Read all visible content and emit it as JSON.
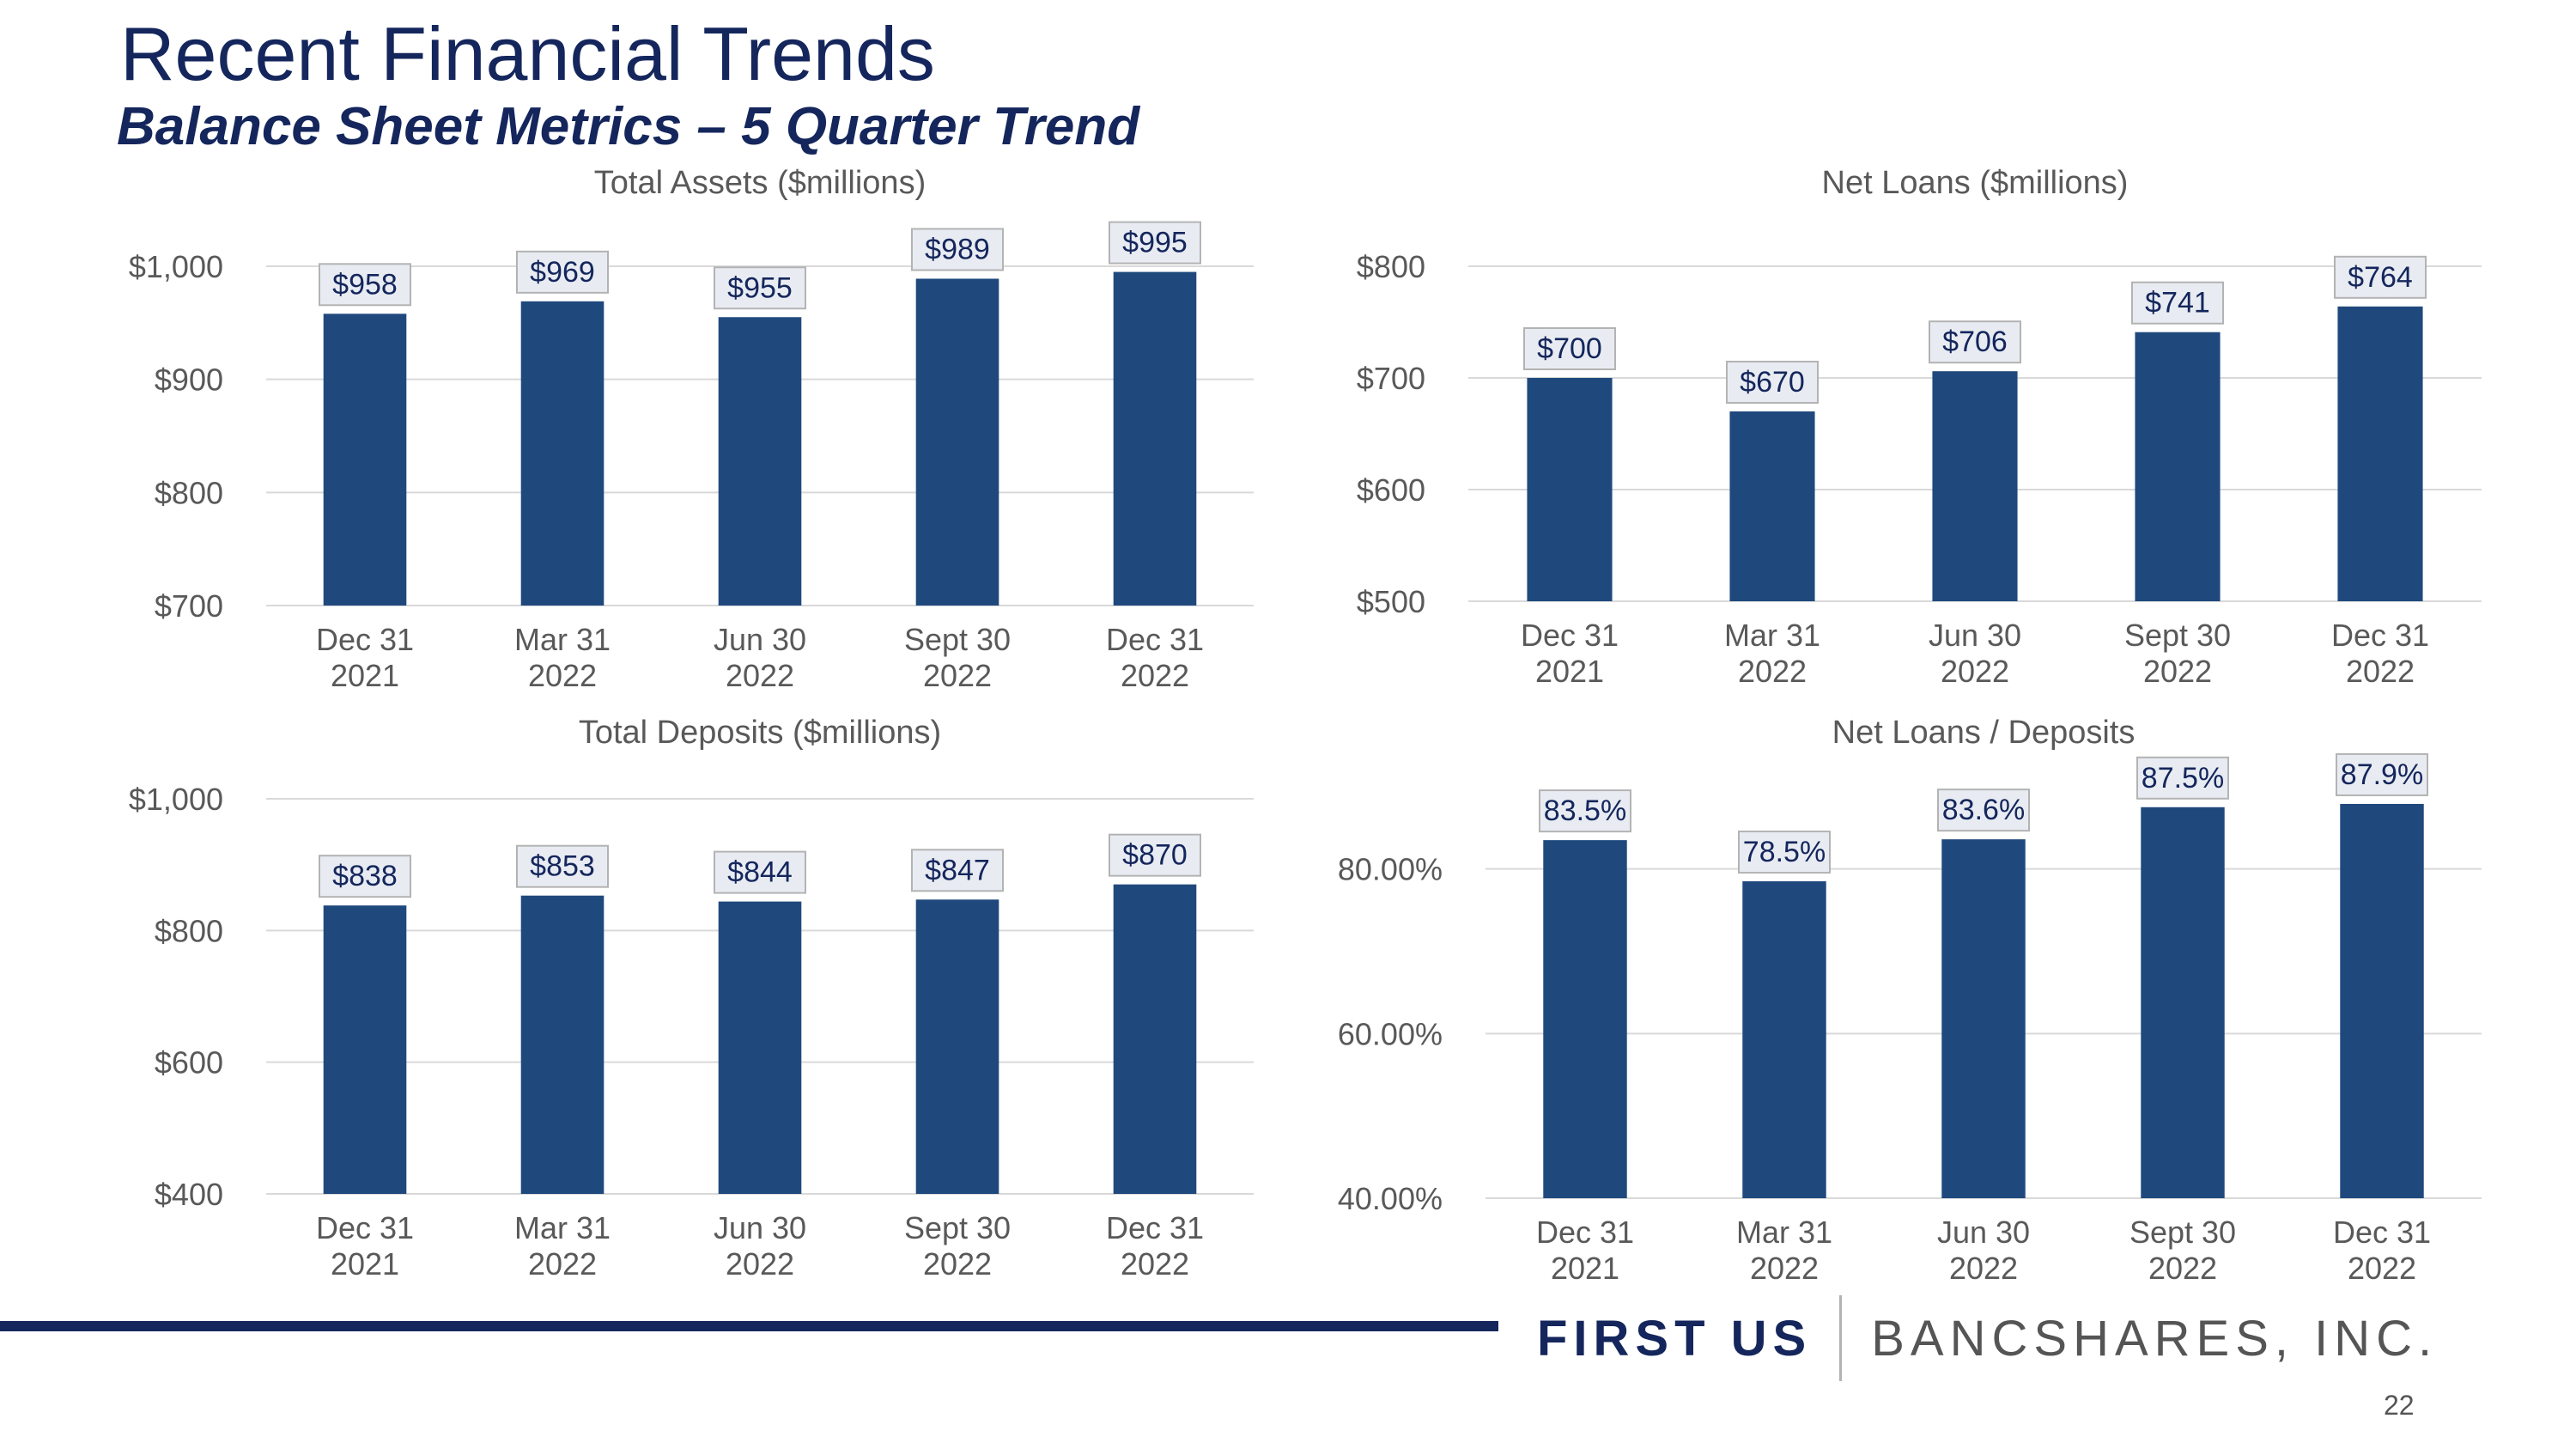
{
  "page": {
    "title": "Recent Financial Trends",
    "subtitle": "Balance Sheet Metrics – 5 Quarter Trend",
    "brand_first": "FIRST US",
    "brand_rest": "BANCSHARES, INC.",
    "page_number": "22"
  },
  "colors": {
    "bar": "#1f497d",
    "title": "#14265c",
    "axis_text": "#595959",
    "grid": "#d9d9d9",
    "label_box_fill": "#e8ecf2",
    "label_box_stroke": "#b3b3b3"
  },
  "chart_data": [
    {
      "type": "bar",
      "title": "Total Assets ($millions)",
      "categories": [
        [
          "Dec 31",
          "2021"
        ],
        [
          "Mar 31",
          "2022"
        ],
        [
          "Jun 30",
          "2022"
        ],
        [
          "Sept 30",
          "2022"
        ],
        [
          "Dec 31",
          "2022"
        ]
      ],
      "values": [
        958,
        969,
        955,
        989,
        995
      ],
      "labels": [
        "$958",
        "$969",
        "$955",
        "$989",
        "$995"
      ],
      "ylim": [
        700,
        1000
      ],
      "yticks": [
        700,
        800,
        900,
        1000
      ],
      "yticklabels": [
        "$700",
        "$800",
        "$900",
        "$1,000"
      ],
      "xlabel": "",
      "ylabel": "",
      "grid": true
    },
    {
      "type": "bar",
      "title": "Net Loans ($millions)",
      "categories": [
        [
          "Dec 31",
          "2021"
        ],
        [
          "Mar 31",
          "2022"
        ],
        [
          "Jun 30",
          "2022"
        ],
        [
          "Sept 30",
          "2022"
        ],
        [
          "Dec 31",
          "2022"
        ]
      ],
      "values": [
        700,
        670,
        706,
        741,
        764
      ],
      "labels": [
        "$700",
        "$670",
        "$706",
        "$741",
        "$764"
      ],
      "ylim": [
        500,
        800
      ],
      "yticks": [
        500,
        600,
        700,
        800
      ],
      "yticklabels": [
        "$500",
        "$600",
        "$700",
        "$800"
      ],
      "xlabel": "",
      "ylabel": "",
      "grid": true
    },
    {
      "type": "bar",
      "title": "Total Deposits ($millions)",
      "categories": [
        [
          "Dec 31",
          "2021"
        ],
        [
          "Mar 31",
          "2022"
        ],
        [
          "Jun 30",
          "2022"
        ],
        [
          "Sept 30",
          "2022"
        ],
        [
          "Dec 31",
          "2022"
        ]
      ],
      "values": [
        838,
        853,
        844,
        847,
        870
      ],
      "labels": [
        "$838",
        "$853",
        "$844",
        "$847",
        "$870"
      ],
      "ylim": [
        400,
        1000
      ],
      "yticks": [
        400,
        600,
        800,
        1000
      ],
      "yticklabels": [
        "$400",
        "$600",
        "$800",
        "$1,000"
      ],
      "xlabel": "",
      "ylabel": "",
      "grid": true
    },
    {
      "type": "bar",
      "title": "Net Loans / Deposits",
      "categories": [
        [
          "Dec 31",
          "2021"
        ],
        [
          "Mar 31",
          "2022"
        ],
        [
          "Jun 30",
          "2022"
        ],
        [
          "Sept 30",
          "2022"
        ],
        [
          "Dec 31",
          "2022"
        ]
      ],
      "values": [
        83.5,
        78.5,
        83.6,
        87.5,
        87.9
      ],
      "labels": [
        "83.5%",
        "78.5%",
        "83.6%",
        "87.5%",
        "87.9%"
      ],
      "ylim": [
        40,
        100
      ],
      "yticks": [
        40,
        60,
        80
      ],
      "yticklabels": [
        "40.00%",
        "60.00%",
        "80.00%"
      ],
      "xlabel": "",
      "ylabel": "",
      "grid": true
    }
  ]
}
